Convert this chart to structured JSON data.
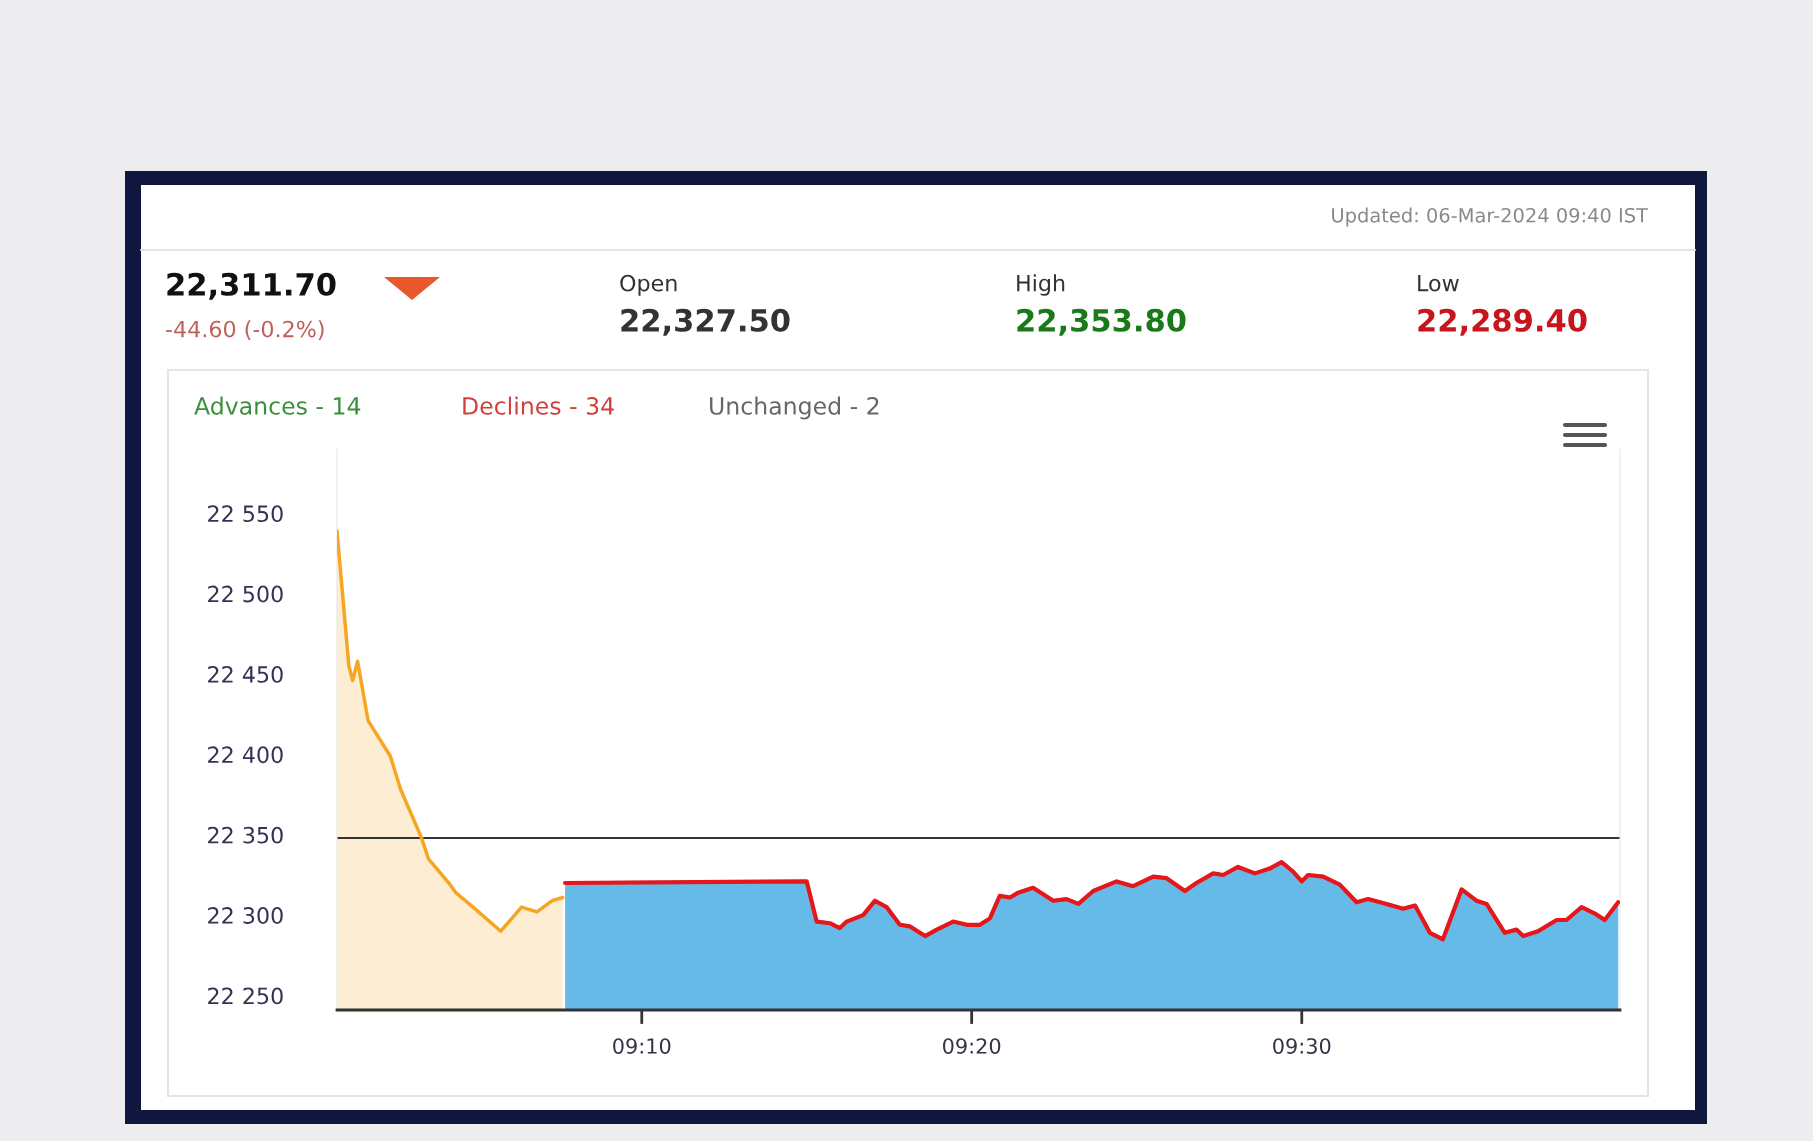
{
  "chart_data": {
    "type": "area",
    "annotations": [
      "Updated: 06-Mar-2024 09:40 IST",
      "22,311.70",
      "-44.60 (-0.2%)",
      "Open",
      "22,327.50",
      "High",
      "22,353.80",
      "Low",
      "22,289.40",
      "Advances - 14",
      "Declines - 34",
      "Unchanged - 2"
    ],
    "series": [
      {
        "color": "#f5a623",
        "x": [
          9.0128,
          9.0188,
          9.0207,
          9.0232,
          9.0285,
          9.0397,
          9.045,
          9.0555,
          9.059,
          9.0693,
          9.0728,
          9.0815,
          9.0955,
          9.106,
          9.1138,
          9.1215,
          9.1268
        ],
        "values": [
          22539,
          22455,
          22446,
          22458,
          22421,
          22399,
          22378,
          22348,
          22335,
          22320,
          22314,
          22305,
          22290,
          22305,
          22302,
          22309,
          22311
        ]
      },
      {
        "color": "#55b3e6",
        "x": [
          9.128,
          9.25,
          9.255,
          9.2617,
          9.2667,
          9.2702,
          9.2785,
          9.2845,
          9.2903,
          9.297,
          9.3022,
          9.3098,
          9.3157,
          9.324,
          9.3308,
          9.3375,
          9.3425,
          9.3475,
          9.3527,
          9.3568,
          9.3643,
          9.3745,
          9.3812,
          9.3872,
          9.3947,
          9.4065,
          9.4148,
          9.425,
          9.4317,
          9.441,
          9.4468,
          9.4553,
          9.4603,
          9.4678,
          9.4763,
          9.4838,
          9.4898,
          9.4957,
          9.5,
          9.5032,
          9.5108,
          9.5192,
          9.5277,
          9.5335,
          9.5428,
          9.5512,
          9.5572,
          9.5647,
          9.5713,
          9.5807,
          9.5882,
          9.5933,
          9.6025,
          9.6085,
          9.6118,
          9.6193,
          9.6287,
          9.6337,
          9.6413,
          9.648,
          9.653,
          9.6598
        ],
        "values": [
          22320,
          22321,
          22296,
          22295,
          22292,
          22296,
          22300,
          22309,
          22305,
          22294,
          22293,
          22287,
          22291,
          22296,
          22294,
          22294,
          22298,
          22312,
          22311,
          22314,
          22317,
          22309,
          22310,
          22307,
          22315,
          22321,
          22318,
          22324,
          22323,
          22315,
          22320,
          22326,
          22325,
          22330,
          22326,
          22329,
          22333,
          22327,
          22321,
          22325,
          22324,
          22319,
          22308,
          22310,
          22307,
          22304,
          22306,
          22289,
          22285,
          22316,
          22309,
          22307,
          22289,
          22291,
          22287,
          22290,
          22297,
          22297,
          22305,
          22301,
          22297,
          22308
        ]
      },
      {
        "type": "line",
        "color": "#e8161b",
        "x": [
          9.128,
          9.25,
          9.255,
          9.2617,
          9.2667,
          9.2702,
          9.2785,
          9.2845,
          9.2903,
          9.297,
          9.3022,
          9.3098,
          9.3157,
          9.324,
          9.3308,
          9.3375,
          9.3425,
          9.3475,
          9.3527,
          9.3568,
          9.3643,
          9.3745,
          9.3812,
          9.3872,
          9.3947,
          9.4065,
          9.4148,
          9.425,
          9.4317,
          9.441,
          9.4468,
          9.4553,
          9.4603,
          9.4678,
          9.4763,
          9.4838,
          9.4898,
          9.4957,
          9.5,
          9.5032,
          9.5108,
          9.5192,
          9.5277,
          9.5335,
          9.5428,
          9.5512,
          9.5572,
          9.5647,
          9.5713,
          9.5807,
          9.5882,
          9.5933,
          9.6025,
          9.6085,
          9.6118,
          9.6193,
          9.6287,
          9.6337,
          9.6413,
          9.648,
          9.653,
          9.6598
        ],
        "values": [
          22320,
          22321,
          22296,
          22295,
          22292,
          22296,
          22300,
          22309,
          22305,
          22294,
          22293,
          22287,
          22291,
          22296,
          22294,
          22294,
          22298,
          22312,
          22311,
          22314,
          22317,
          22309,
          22310,
          22307,
          22315,
          22321,
          22318,
          22324,
          22323,
          22315,
          22320,
          22326,
          22325,
          22330,
          22326,
          22329,
          22333,
          22327,
          22321,
          22325,
          22324,
          22319,
          22308,
          22310,
          22307,
          22304,
          22306,
          22289,
          22285,
          22316,
          22309,
          22307,
          22289,
          22291,
          22287,
          22290,
          22297,
          22297,
          22305,
          22301,
          22297,
          22308
        ]
      }
    ],
    "ref_lines": [
      {
        "axis": "y",
        "value": 22348,
        "color": "#333333"
      }
    ],
    "xlim": [
      9.0128,
      9.6607
    ],
    "ylim": [
      22241,
      22590
    ],
    "xticks": [
      {
        "value": 9.1667,
        "label": "09:10"
      },
      {
        "value": 9.3333,
        "label": "09:20"
      },
      {
        "value": 9.5,
        "label": "09:30"
      }
    ],
    "yticks": [
      {
        "value": 22250,
        "label": "22 250"
      },
      {
        "value": 22300,
        "label": "22 300"
      },
      {
        "value": 22350,
        "label": "22 350"
      },
      {
        "value": 22400,
        "label": "22 400"
      },
      {
        "value": 22450,
        "label": "22 450"
      },
      {
        "value": 22500,
        "label": "22 500"
      },
      {
        "value": 22550,
        "label": "22 550"
      }
    ],
    "grid": false,
    "legend": false,
    "marker": "none",
    "line_style": "solid"
  }
}
